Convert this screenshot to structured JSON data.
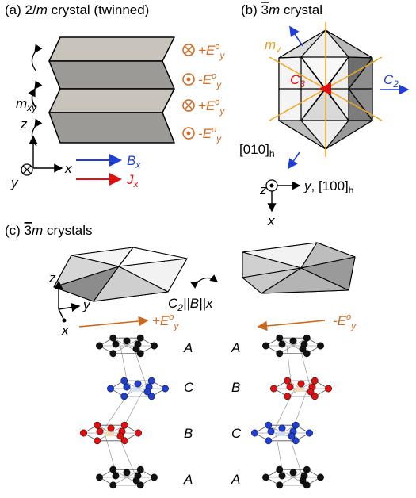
{
  "panel_a": {
    "title": "(a) 2/m crystal (twinned)",
    "field_labels": [
      "⊗ +E°y",
      "⊙ -E°y",
      "⊗ +E°y",
      "⊙ -E°y"
    ],
    "mirror_label": "mxy",
    "axes": {
      "z": "z",
      "x": "x",
      "y": "y"
    },
    "legend": {
      "b_field": "Bx",
      "current": "Jx"
    }
  },
  "panel_b": {
    "title": "(b) 3̄m crystal",
    "mirror_label": "mv",
    "c3_label": "C3",
    "c2_label": "C2",
    "dir_010": "[010]h",
    "axes": {
      "z": "z",
      "y": "y, [100]h",
      "x": "x"
    }
  },
  "panel_c": {
    "title": "(c) 3̄m crystals",
    "symmetry_label": "C2||B||x",
    "left_field": "+E°y",
    "right_field": "-E°y",
    "axes": {
      "z": "z",
      "y": "y",
      "x": "x"
    },
    "left_stack": [
      "A",
      "C",
      "B",
      "A"
    ],
    "right_stack": [
      "A",
      "B",
      "C",
      "A"
    ]
  },
  "colors": {
    "orange": "#d2691e",
    "blue": "#1f3fd6",
    "red": "#e01010",
    "mirror_line": "#f2a81d"
  }
}
